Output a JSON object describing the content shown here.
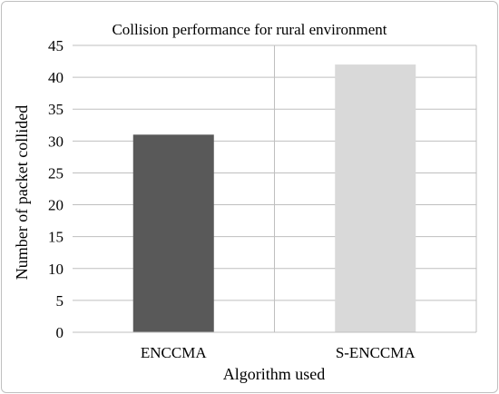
{
  "chart_data": {
    "type": "bar",
    "title": "Collision performance for rural environment",
    "xlabel": "Algorithm used",
    "ylabel": "Number of packet collided",
    "categories": [
      "ENCCMA",
      "S-ENCCMA"
    ],
    "values": [
      31,
      42
    ],
    "ylim": [
      0,
      45
    ],
    "yticks": [
      "0",
      "5",
      "10",
      "15",
      "20",
      "25",
      "30",
      "35",
      "40",
      "45"
    ],
    "bar_colors": [
      "#595959",
      "#d9d9d9"
    ],
    "grid": true,
    "legend": "none"
  }
}
